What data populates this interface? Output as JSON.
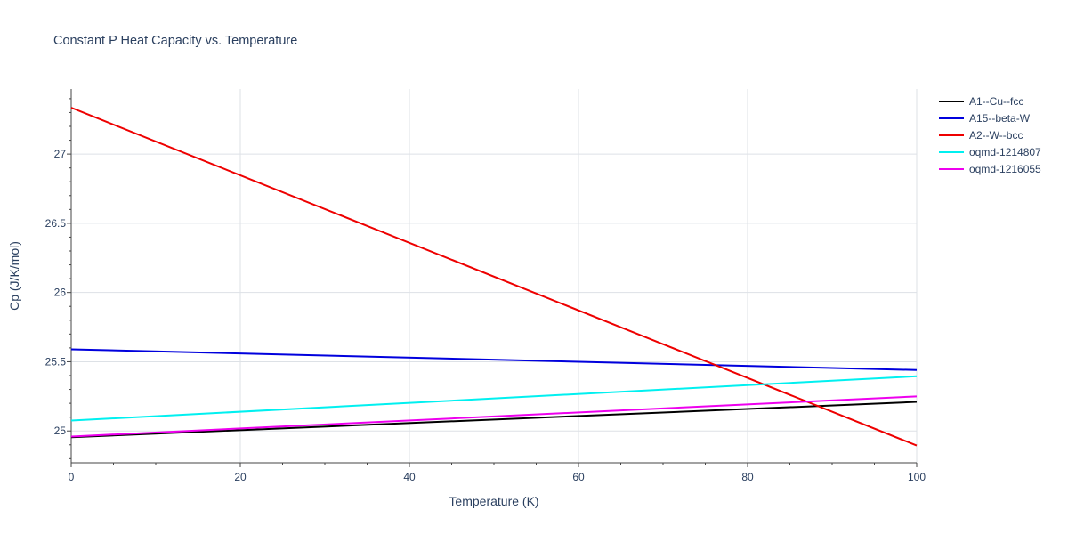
{
  "chart_data": {
    "type": "line",
    "title": "Constant P Heat Capacity vs. Temperature",
    "xlabel": "Temperature (K)",
    "ylabel": "Cp (J/K/mol)",
    "xlim": [
      0,
      100
    ],
    "ylim": [
      24.77,
      27.47
    ],
    "x_ticks": [
      0,
      20,
      40,
      60,
      80,
      100
    ],
    "y_ticks": [
      25,
      25.5,
      26,
      26.5,
      27
    ],
    "x_tick_labels": [
      "0",
      "20",
      "40",
      "60",
      "80",
      "100"
    ],
    "y_tick_labels": [
      "25",
      "25.5",
      "26",
      "26.5",
      "27"
    ],
    "grid": true,
    "legend_position": "top-right",
    "series": [
      {
        "name": "A1--Cu--fcc",
        "color": "#000000",
        "x": [
          0,
          100
        ],
        "y": [
          24.955,
          25.21
        ]
      },
      {
        "name": "A15--beta-W",
        "color": "#0000dd",
        "x": [
          0,
          100
        ],
        "y": [
          25.59,
          25.44
        ]
      },
      {
        "name": "A2--W--bcc",
        "color": "#ee0000",
        "x": [
          0,
          100
        ],
        "y": [
          27.335,
          24.895
        ]
      },
      {
        "name": "oqmd-1214807",
        "color": "#00f0f0",
        "x": [
          0,
          100
        ],
        "y": [
          25.075,
          25.395
        ]
      },
      {
        "name": "oqmd-1216055",
        "color": "#ee00ee",
        "x": [
          0,
          100
        ],
        "y": [
          24.96,
          25.25
        ]
      }
    ]
  }
}
